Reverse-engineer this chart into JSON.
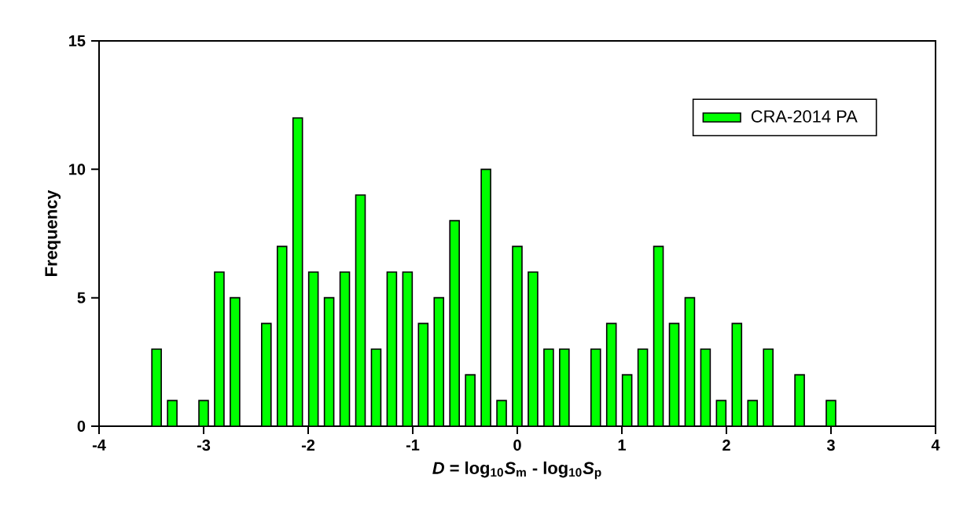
{
  "chart_data": {
    "type": "histogram",
    "xlabel": "*D* = log$_{10}$*S*$_{m}$ - log$_{10}$*S*$_{p}$",
    "ylabel": "Frequency",
    "bins": [
      -3.525,
      -3.375,
      -3.225,
      -3.075,
      -2.925,
      -2.775,
      -2.625,
      -2.475,
      -2.325,
      -2.175,
      -2.025,
      -1.875,
      -1.725,
      -1.575,
      -1.425,
      -1.275,
      -1.125,
      -0.975,
      -0.825,
      -0.675,
      -0.525,
      -0.375,
      -0.225,
      -0.075,
      0.075,
      0.225,
      0.375,
      0.525,
      0.675,
      0.825,
      0.975,
      1.125,
      1.275,
      1.425,
      1.575,
      1.725,
      1.875,
      2.025,
      2.175,
      2.325,
      2.475,
      2.625,
      2.775,
      2.925,
      3.075
    ],
    "series": [
      {
        "name": "CRA-2014 PA",
        "color": "#00ff00",
        "values": [
          3,
          1,
          0,
          1,
          6,
          5,
          0,
          4,
          7,
          12,
          6,
          5,
          6,
          9,
          3,
          6,
          6,
          4,
          5,
          8,
          2,
          10,
          1,
          7,
          6,
          3,
          3,
          0,
          3,
          4,
          2,
          3,
          7,
          4,
          5,
          3,
          1,
          4,
          1,
          3,
          0,
          2,
          0,
          1
        ]
      }
    ],
    "xlim": [
      -4,
      4
    ],
    "xticks": [
      -4,
      -3,
      -2,
      -1,
      0,
      1,
      2,
      3,
      4
    ],
    "ylim": [
      0,
      15
    ],
    "yticks": [
      0,
      5,
      10,
      15
    ],
    "grid": false,
    "legend": "top right"
  }
}
